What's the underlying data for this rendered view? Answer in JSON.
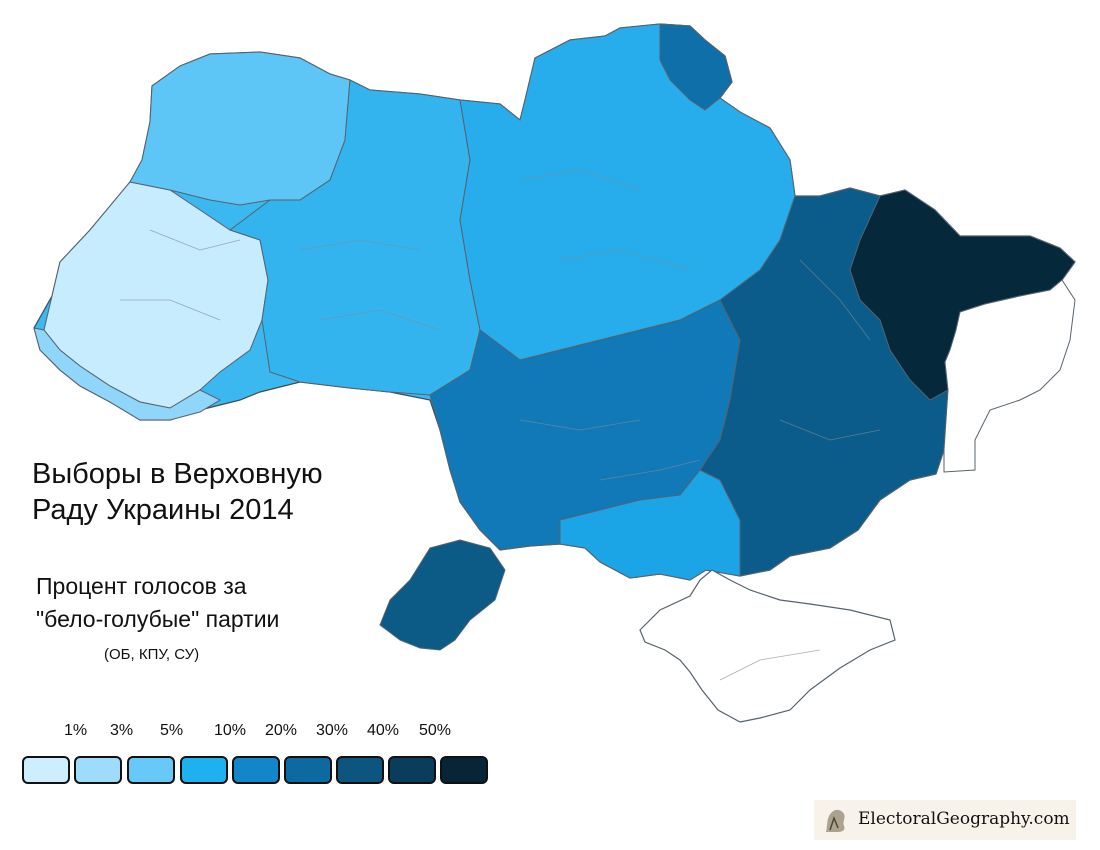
{
  "title_line1": "Выборы в Верховную",
  "title_line2": "Раду Украины 2014",
  "subtitle_line1": "Процент голосов за",
  "subtitle_line2": "\"бело-голубые\" партии",
  "parties": "(ОБ, КПУ, СУ)",
  "legend": {
    "thresholds": [
      "1%",
      "3%",
      "5%",
      "10%",
      "20%",
      "30%",
      "40%",
      "50%"
    ],
    "colors": [
      "#cdeefe",
      "#9fdcfb",
      "#66c9f7",
      "#1eb0ef",
      "#1286c9",
      "#0c6aa0",
      "#0b557f",
      "#0a3d5c",
      "#062537"
    ]
  },
  "credit": "ElectoralGeography.com",
  "regions_colors": {
    "no_data": "#ffffff",
    "border": "#4d5a66"
  }
}
